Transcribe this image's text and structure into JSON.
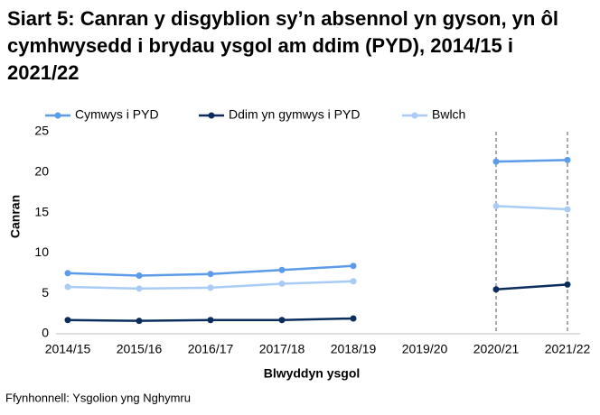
{
  "chart_data": {
    "type": "line",
    "title": "Siart 5: Canran y disgyblion sy’n absennol yn gyson, yn ôl cymhwysedd i brydau ysgol am ddim (PYD), 2014/15 i 2021/22",
    "categories": [
      "2014/15",
      "2015/16",
      "2016/17",
      "2017/18",
      "2018/19",
      "2019/20",
      "2020/21",
      "2021/22"
    ],
    "series": [
      {
        "name": "Cymwys i PYD",
        "color": "#5b9be8",
        "values": [
          7.5,
          7.2,
          7.4,
          7.9,
          8.4,
          null,
          21.3,
          21.5
        ]
      },
      {
        "name": "Ddim yn gymwys i PYD",
        "color": "#0b2d5e",
        "values": [
          1.7,
          1.6,
          1.7,
          1.7,
          1.9,
          null,
          5.5,
          6.1
        ]
      },
      {
        "name": "Bwlch",
        "color": "#a8ccf5",
        "values": [
          5.8,
          5.6,
          5.7,
          6.2,
          6.5,
          null,
          15.8,
          15.4
        ]
      }
    ],
    "ylim": [
      0,
      25
    ],
    "yticks": [
      0,
      5,
      10,
      15,
      20,
      25
    ],
    "y_label": "Canran",
    "x_label": "Blwyddyn ysgol",
    "source": "Ffynhonnell: Ysgolion yng Nghymru"
  }
}
